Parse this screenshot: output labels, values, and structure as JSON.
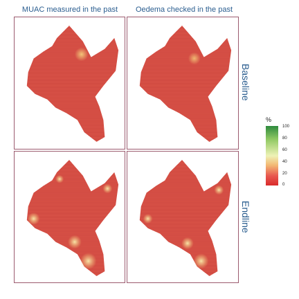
{
  "columns": [
    "MUAC measured in the past",
    "Oedema checked in the past"
  ],
  "rows": [
    "Baseline",
    "Endline"
  ],
  "legend": {
    "title": "%",
    "ticks": [
      "100",
      "80",
      "60",
      "40",
      "20",
      "0"
    ],
    "colors": [
      "#1a9641",
      "#a6d96a",
      "#ffffbf",
      "#fdae61",
      "#d7191c"
    ]
  },
  "colors": {
    "region_fill": "#e05a4e",
    "hatch_line": "#b8322d",
    "panel_border": "#9b5a6e",
    "label_text": "#2a5d8f"
  },
  "panels": [
    {
      "column": "MUAC measured in the past",
      "row": "Baseline",
      "hotspots": [
        {
          "level": 35
        }
      ]
    },
    {
      "column": "Oedema checked in the past",
      "row": "Baseline",
      "hotspots": [
        {
          "level": 30
        }
      ]
    },
    {
      "column": "MUAC measured in the past",
      "row": "Endline",
      "hotspots": [
        {
          "level": 45
        },
        {
          "level": 40
        },
        {
          "level": 40
        },
        {
          "level": 30
        },
        {
          "level": 30
        }
      ]
    },
    {
      "column": "Oedema checked in the past",
      "row": "Endline",
      "hotspots": [
        {
          "level": 45
        },
        {
          "level": 40
        },
        {
          "level": 40
        },
        {
          "level": 30
        }
      ]
    }
  ]
}
